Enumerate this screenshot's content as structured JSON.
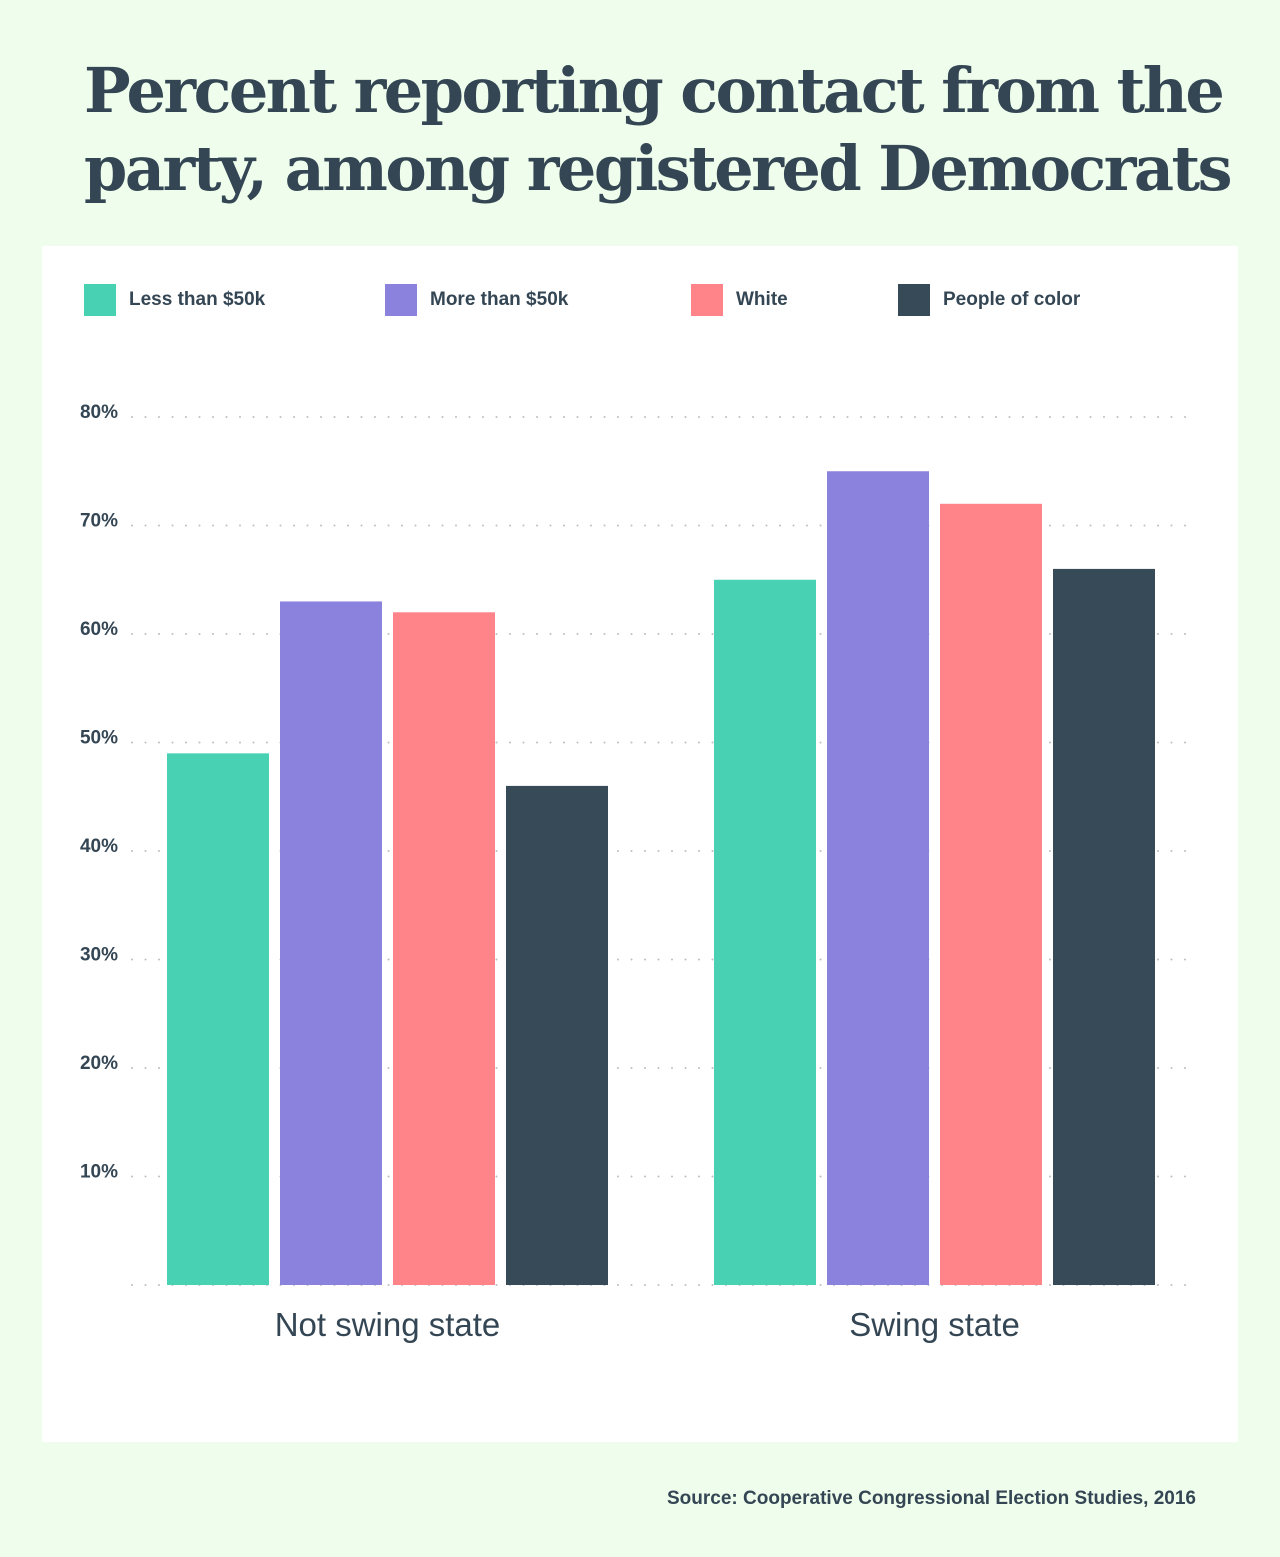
{
  "title": "Percent reporting contact from the party, among registered Democrats",
  "source": "Source: Cooperative Congressional Election Studies, 2016",
  "chart_data": {
    "type": "bar",
    "title": "Percent reporting contact from the party, among registered Democrats",
    "xlabel": "",
    "ylabel": "",
    "categories": [
      "Not swing state",
      "Swing state"
    ],
    "series": [
      {
        "name": "Less than $50k",
        "color": "#48d1b3",
        "values": [
          49,
          65
        ]
      },
      {
        "name": "More than $50k",
        "color": "#8a82dc",
        "values": [
          63,
          75
        ]
      },
      {
        "name": "White",
        "color": "#ff848a",
        "values": [
          62,
          72
        ]
      },
      {
        "name": "People of color",
        "color": "#374a58",
        "values": [
          46,
          66
        ]
      }
    ],
    "ylim": [
      0,
      80
    ],
    "yticks": [
      10,
      20,
      30,
      40,
      50,
      60,
      70,
      80
    ],
    "ytick_labels": [
      "10%",
      "20%",
      "30%",
      "40%",
      "50%",
      "60%",
      "70%",
      "80%"
    ],
    "grid": true,
    "grid_style": "dotted",
    "legend_position": "top"
  }
}
